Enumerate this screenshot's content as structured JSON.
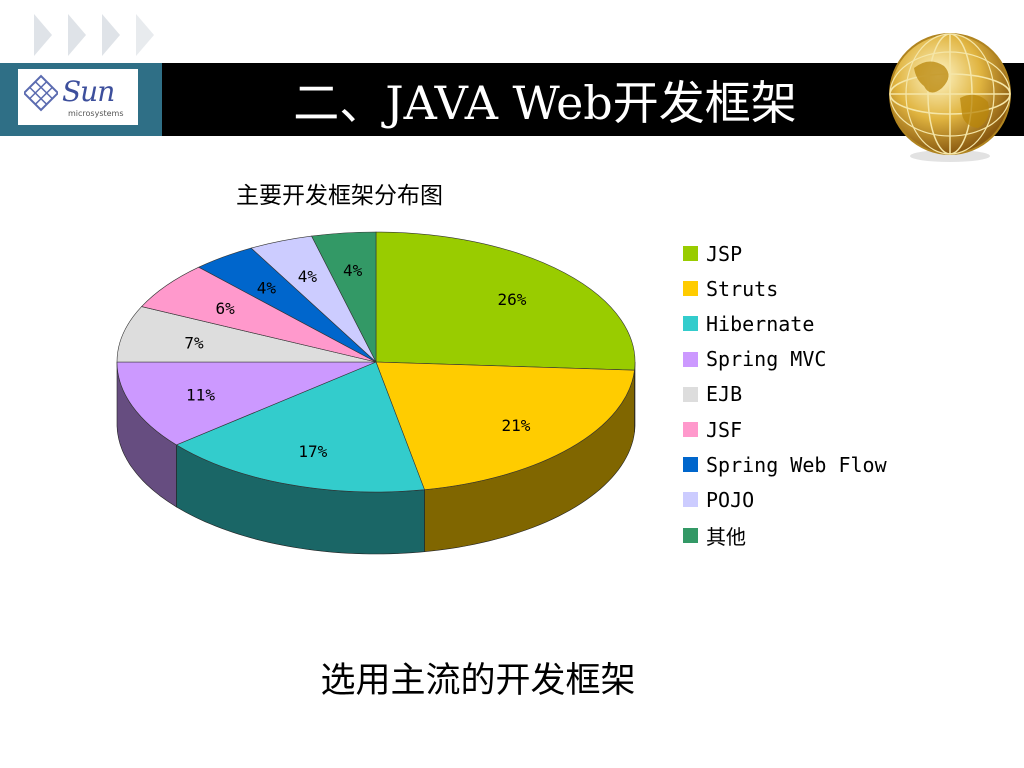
{
  "header": {
    "title": "二、JAVA Web开发框架",
    "logo_text": "Sun",
    "logo_subtext": "microsystems"
  },
  "chart_data": {
    "type": "pie",
    "title": "主要开发框架分布图",
    "categories": [
      "JSP",
      "Struts",
      "Hibernate",
      "Spring MVC",
      "EJB",
      "JSF",
      "Spring Web Flow",
      "POJO",
      "其他"
    ],
    "values": [
      26,
      21,
      17,
      11,
      7,
      6,
      4,
      4,
      4
    ],
    "labels": [
      "26%",
      "21%",
      "17%",
      "11%",
      "7%",
      "6%",
      "4%",
      "4%",
      "4%"
    ],
    "colors": [
      "#99cc00",
      "#ffcc00",
      "#33cccc",
      "#cc99ff",
      "#dddddd",
      "#ff99cc",
      "#0066cc",
      "#ccccff",
      "#339966"
    ],
    "style": "3d",
    "legend_position": "right"
  },
  "subtitle": "选用主流的开发框架"
}
